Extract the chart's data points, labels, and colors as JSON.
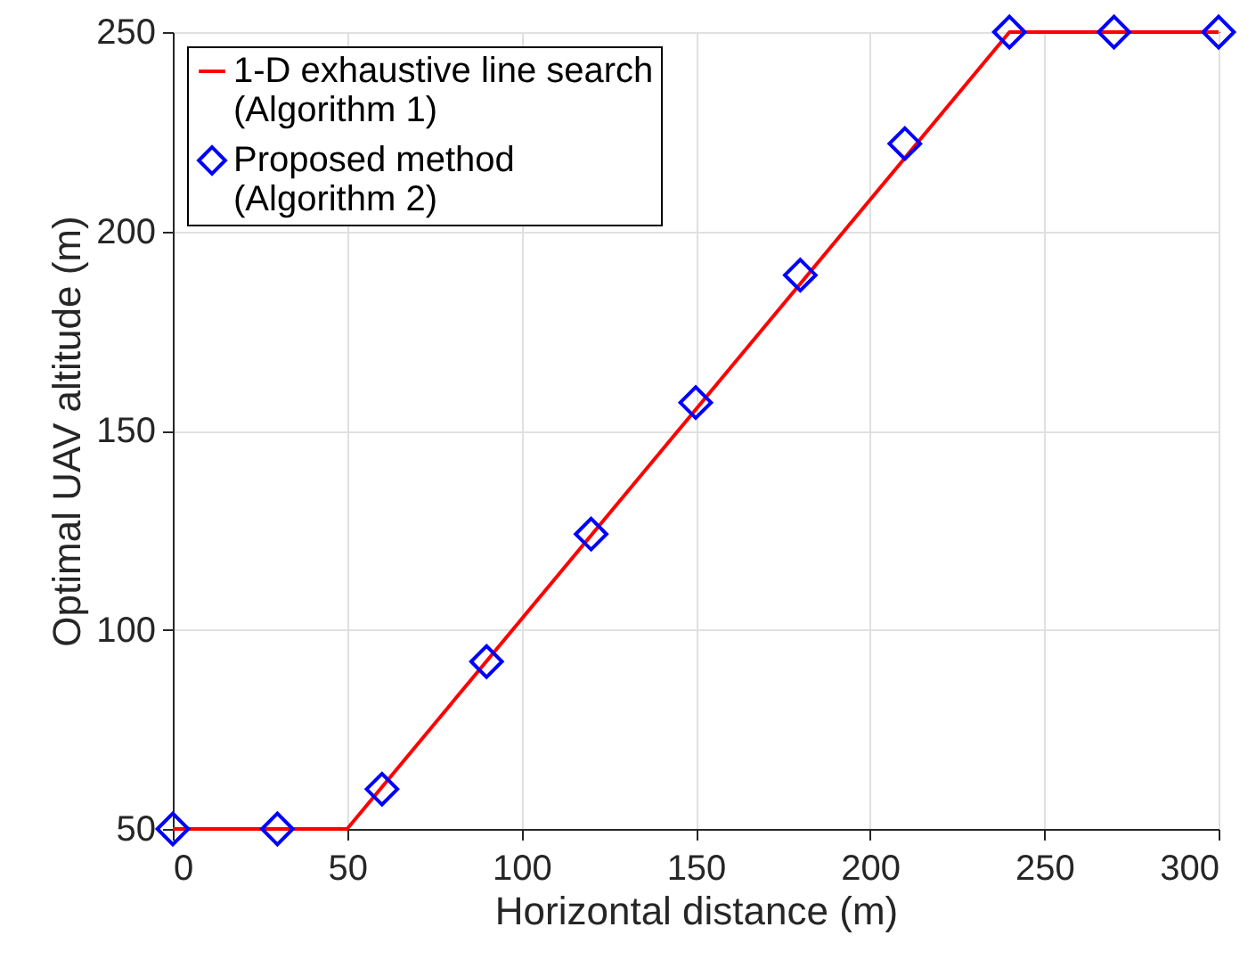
{
  "chart_data": {
    "type": "line",
    "xlabel": "Horizontal distance (m)",
    "ylabel": "Optimal UAV altitude (m)",
    "xlim": [
      0,
      300
    ],
    "xticks": [
      0,
      50,
      100,
      150,
      200,
      250,
      300
    ],
    "ylim": [
      50,
      250
    ],
    "yticks": [
      50,
      100,
      150,
      200,
      250
    ],
    "grid": true,
    "legend": "top left",
    "series": [
      {
        "name": "1-D exhaustive line search (Algorithm 1)",
        "color": "#ff0000",
        "marker": "none",
        "line_style": "solid",
        "x": [
          0,
          50,
          240,
          300
        ],
        "values": [
          50,
          50,
          250,
          250
        ]
      },
      {
        "name": "Proposed method (Algorithm 2)",
        "type": "scatter",
        "color": "#0000ff",
        "marker": "diamond",
        "x": [
          0,
          30,
          60,
          90,
          120,
          150,
          180,
          210,
          240,
          270,
          300
        ],
        "values": [
          50,
          50,
          60,
          92,
          124,
          157,
          189,
          222,
          250,
          250,
          250
        ]
      }
    ]
  }
}
